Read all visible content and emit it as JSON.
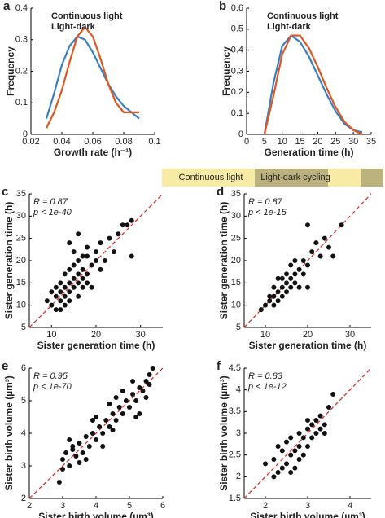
{
  "chart_data": [
    {
      "type": "line",
      "panel": "a",
      "xlabel": "Growth rate (h⁻¹)",
      "ylabel": "Frequency",
      "x": [
        0.03,
        0.035,
        0.04,
        0.045,
        0.05,
        0.055,
        0.06,
        0.065,
        0.07,
        0.075,
        0.08,
        0.085,
        0.09
      ],
      "series": [
        {
          "name": "Continuous light",
          "color": "#3a7fc4",
          "values": [
            0.05,
            0.13,
            0.22,
            0.28,
            0.31,
            0.3,
            0.26,
            0.21,
            0.16,
            0.12,
            0.09,
            0.07,
            0.05
          ]
        },
        {
          "name": "Light-dark",
          "color": "#e0561f",
          "values": [
            0.02,
            0.07,
            0.14,
            0.23,
            0.31,
            0.34,
            0.31,
            0.24,
            0.16,
            0.1,
            0.07,
            0.07,
            0.07
          ]
        }
      ],
      "xlim": [
        0.02,
        0.1
      ],
      "xticks": [
        0.02,
        0.04,
        0.06,
        0.08,
        0.1
      ],
      "ylim": [
        0,
        0.4
      ],
      "yticks": [
        0,
        0.1,
        0.2,
        0.3,
        0.4
      ]
    },
    {
      "type": "line",
      "panel": "b",
      "xlabel": "Generation time (h)",
      "ylabel": "Frequency",
      "x": [
        5,
        7.5,
        10,
        12.5,
        15,
        17.5,
        20,
        22.5,
        25,
        27.5,
        30,
        32.5
      ],
      "series": [
        {
          "name": "Continuous light",
          "color": "#3a7fc4",
          "values": [
            0,
            0.24,
            0.42,
            0.47,
            0.44,
            0.37,
            0.28,
            0.19,
            0.11,
            0.05,
            0.02,
            0.01
          ]
        },
        {
          "name": "Light-dark",
          "color": "#e0561f",
          "values": [
            0,
            0.18,
            0.38,
            0.47,
            0.47,
            0.41,
            0.32,
            0.22,
            0.13,
            0.06,
            0.02,
            0
          ]
        }
      ],
      "xlim": [
        0,
        35
      ],
      "xticks": [
        0,
        5,
        10,
        15,
        20,
        25,
        30,
        35
      ],
      "ylim": [
        0,
        0.6
      ],
      "yticks": [
        0,
        0.1,
        0.2,
        0.3,
        0.4,
        0.5,
        0.6
      ]
    },
    {
      "type": "scatter",
      "panel": "c",
      "header": "Continuous light",
      "annotations": [
        "R = 0.87",
        "p < 1e-40"
      ],
      "xlabel": "Sister generation time (h)",
      "ylabel": "Sister generation time (h)",
      "color": "#111111",
      "x": [
        10,
        11,
        12,
        12,
        13,
        13,
        14,
        14,
        15,
        15,
        16,
        16,
        17,
        17,
        18,
        12,
        11,
        14,
        13,
        15,
        16,
        17,
        18,
        20,
        20,
        21,
        22,
        23,
        24,
        25,
        26,
        27,
        28,
        28,
        21,
        19,
        18,
        14,
        16,
        15,
        13,
        10,
        9,
        12,
        16,
        17,
        19,
        18,
        14,
        11
      ],
      "values": [
        10,
        12,
        11,
        13,
        12,
        14,
        13,
        15,
        14,
        16,
        15,
        17,
        16,
        18,
        17,
        15,
        9,
        11,
        17,
        19,
        20,
        21,
        21,
        20,
        22,
        24,
        20,
        25,
        22,
        26,
        28,
        28,
        29,
        21,
        18,
        14,
        23,
        24,
        26,
        22,
        10,
        13,
        11,
        9,
        12,
        14,
        19,
        15,
        18,
        14
      ],
      "xlim": [
        5,
        35
      ],
      "xticks": [
        10,
        20,
        30
      ],
      "ylim": [
        5,
        35
      ],
      "yticks": [
        5,
        10,
        15,
        20,
        25,
        30,
        35
      ]
    },
    {
      "type": "scatter",
      "panel": "d",
      "header": "Light-dark cycling",
      "annotations": [
        "R = 0.87",
        "p < 1e-15"
      ],
      "xlabel": "Sister generation time (h)",
      "ylabel": "Sister generation time (h)",
      "color": "#111111",
      "x": [
        9,
        10,
        11,
        11,
        12,
        12,
        13,
        13,
        14,
        14,
        15,
        15,
        16,
        16,
        17,
        17,
        18,
        18,
        19,
        19,
        20,
        20,
        21,
        22,
        23,
        24,
        25,
        26,
        28,
        15,
        14,
        17,
        13,
        12,
        20,
        16
      ],
      "values": [
        9,
        10,
        11,
        12,
        10,
        12,
        11,
        13,
        12,
        14,
        15,
        13,
        16,
        14,
        17,
        15,
        18,
        14,
        17,
        20,
        28,
        19,
        22,
        24,
        21,
        25,
        23,
        21,
        28,
        17,
        16,
        20,
        16,
        14,
        14,
        19
      ],
      "xlim": [
        5,
        35
      ],
      "xticks": [
        10,
        20,
        30
      ],
      "ylim": [
        5,
        35
      ],
      "yticks": [
        5,
        10,
        15,
        20,
        25,
        30,
        35
      ]
    },
    {
      "type": "scatter",
      "panel": "e",
      "annotations": [
        "R = 0.95",
        "p < 1e-70"
      ],
      "xlabel": "Sister birth volume (µm³)",
      "ylabel": "Sister birth volume (µm³)",
      "color": "#111111",
      "x": [
        3,
        3.1,
        3.2,
        3.3,
        3.4,
        3.5,
        3.6,
        3.7,
        3.8,
        3.9,
        4,
        4.1,
        4.2,
        4.3,
        4.4,
        4.5,
        4.6,
        4.7,
        4.8,
        4.9,
        5,
        5.1,
        5.2,
        5.3,
        5.4,
        5.5,
        5.6,
        5.7,
        2.9,
        3.2,
        3.5,
        3.9,
        4.2,
        4.5,
        4.8,
        5.2,
        5.5,
        5.1,
        4.4,
        3.7,
        3.3,
        4,
        5.6,
        5.3,
        4.6,
        3
      ],
      "values": [
        3.2,
        3.4,
        3,
        3.5,
        3.3,
        3.7,
        3.4,
        3.9,
        3.6,
        4,
        3.8,
        4.2,
        4,
        4.4,
        4.2,
        4.6,
        4.4,
        4.8,
        4.6,
        5,
        4.8,
        5.2,
        5,
        5.4,
        5.3,
        5.6,
        5.8,
        6,
        2.5,
        3.8,
        3.1,
        4.4,
        3.6,
        4.1,
        5.3,
        4.5,
        5.1,
        5.6,
        4.9,
        3.2,
        3.6,
        4.5,
        5.5,
        4.6,
        5.1,
        2.9
      ],
      "xlim": [
        2,
        6
      ],
      "xticks": [
        2,
        3,
        4,
        5,
        6
      ],
      "ylim": [
        2,
        6
      ],
      "yticks": [
        2,
        3,
        4,
        5,
        6
      ]
    },
    {
      "type": "scatter",
      "panel": "f",
      "annotations": [
        "R = 0.83",
        "p < 1e-12"
      ],
      "xlabel": "Sister birth volume (µm³)",
      "ylabel": "Sister birth volume (µm³)",
      "color": "#111111",
      "x": [
        2,
        2.2,
        2.3,
        2.3,
        2.4,
        2.4,
        2.5,
        2.5,
        2.6,
        2.6,
        2.7,
        2.7,
        2.8,
        2.8,
        2.9,
        2.9,
        3,
        3,
        3.1,
        3.1,
        3.2,
        3.2,
        3.3,
        3.3,
        3.4,
        3.5,
        3.6,
        2.2,
        2.6,
        3,
        3.4,
        2.8
      ],
      "values": [
        2.3,
        2.4,
        2.1,
        2.7,
        2.2,
        2.6,
        2.3,
        2.8,
        2.5,
        2.9,
        2.6,
        2.2,
        2.7,
        3,
        2.9,
        2.5,
        3.1,
        2.7,
        3.2,
        2.9,
        3.3,
        3,
        3.1,
        3.4,
        3.2,
        3.6,
        3.9,
        2,
        2.1,
        3.3,
        3,
        2.4
      ],
      "xlim": [
        1.5,
        4.5
      ],
      "xticks": [
        2,
        3,
        4
      ],
      "ylim": [
        1.5,
        4.5
      ],
      "yticks": [
        1.5,
        2,
        2.5,
        3,
        3.5,
        4,
        4.5
      ]
    }
  ]
}
